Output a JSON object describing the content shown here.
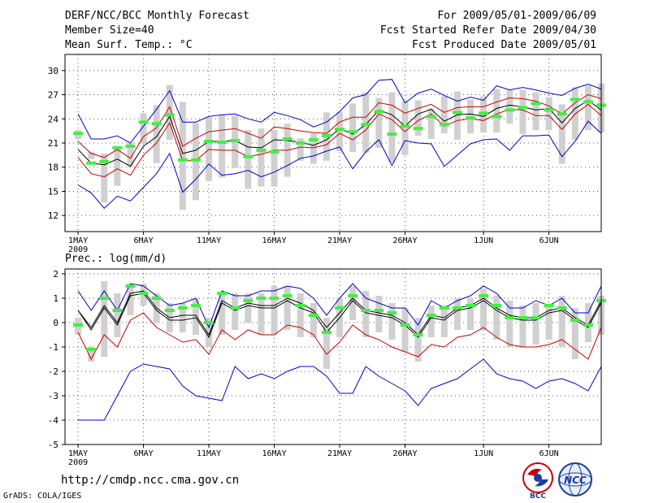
{
  "header": {
    "title": "DERF/NCC/BCC Monthly Forecast",
    "member_size": "Member Size=40",
    "variable": "Mean Surf. Temp.: °C",
    "period": "For 2009/05/01-2009/06/09",
    "started": "Fcst Started Refer Date 2009/04/30",
    "produced": "Fcst Produced Date 2009/05/01"
  },
  "panel2_label": "Prec.: log(mm/d)",
  "footer": {
    "url": "http://cmdp.ncc.cma.gov.cn",
    "grads": "GrADS: COLA/IGES",
    "logo_bcc": "BCC",
    "logo_ncc": "NCC"
  },
  "colors": {
    "envelope": "#0000cc",
    "spread": "#cc0000",
    "mean": "#000000",
    "box": "#d0d0d0",
    "obs": "#44ee44"
  },
  "chart_data": [
    {
      "type": "line",
      "title": "Mean Surf. Temp.: °C",
      "x_label": "day",
      "x_ticks": [
        "1MAY\n2009",
        "6MAY",
        "11MAY",
        "16MAY",
        "21MAY",
        "26MAY",
        "1JUN",
        "6JUN"
      ],
      "x_tick_days": [
        1,
        6,
        11,
        16,
        21,
        26,
        32,
        37
      ],
      "x_range": [
        0,
        41
      ],
      "ylim": [
        10,
        32
      ],
      "y_ticks": [
        12,
        15,
        18,
        21,
        24,
        27,
        30
      ],
      "series": [
        {
          "name": "max",
          "color": "#0000cc",
          "values": [
            24.6,
            21.5,
            21.5,
            21.9,
            21,
            23.1,
            25.2,
            27.5,
            23.6,
            23.6,
            24.3,
            24.5,
            24.6,
            24,
            23.6,
            24.8,
            24.4,
            23.9,
            23,
            23.6,
            24.9,
            26.6,
            27,
            28.8,
            28.9,
            26,
            27.2,
            27.7,
            26.9,
            26.2,
            26.7,
            26.3,
            28.1,
            27.6,
            27.9,
            27.6,
            27.2,
            26.9,
            27.8,
            28.3,
            27.7
          ]
        },
        {
          "name": "upper",
          "color": "#cc0000",
          "values": [
            21.2,
            19.7,
            19.2,
            20.2,
            19.1,
            21.8,
            22.9,
            25.5,
            20.6,
            21.6,
            22.4,
            22.6,
            22.8,
            22.2,
            21.6,
            23,
            22.8,
            22.5,
            22.3,
            22.2,
            23.6,
            24.2,
            24.2,
            26,
            25.7,
            24.7,
            25.3,
            25.8,
            24.8,
            25.4,
            25.5,
            25.5,
            26.1,
            26.6,
            26.5,
            26.2,
            25.6,
            24.6,
            26,
            27,
            26.5
          ]
        },
        {
          "name": "mean",
          "color": "#000000",
          "values": [
            20.2,
            18.5,
            18.3,
            19,
            18.1,
            20.6,
            21.8,
            24.3,
            19.7,
            20.1,
            21.2,
            21.2,
            21.3,
            20.5,
            20.4,
            21.4,
            21.3,
            21.1,
            20.7,
            21.4,
            22.8,
            22.1,
            23.3,
            25.1,
            24.5,
            23.1,
            24.6,
            25.2,
            23.7,
            24.5,
            24.6,
            24.3,
            25.3,
            25.7,
            25.5,
            25.1,
            25.3,
            23.5,
            25.3,
            26.3,
            25.1
          ]
        },
        {
          "name": "lower",
          "color": "#cc0000",
          "values": [
            19.2,
            17.2,
            16.8,
            17.8,
            17,
            19.5,
            21,
            23.5,
            18.8,
            18.8,
            20.2,
            20.1,
            20.1,
            19.3,
            19.6,
            20.1,
            20.1,
            20.5,
            20.4,
            20.8,
            22.2,
            21.4,
            22.6,
            24.6,
            23.9,
            22.4,
            23.8,
            24.6,
            23.1,
            23.8,
            24,
            23.8,
            24.6,
            25.2,
            25.1,
            24.4,
            24.4,
            22.7,
            24.6,
            25.8,
            24.4
          ]
        },
        {
          "name": "min",
          "color": "#0000cc",
          "values": [
            15.8,
            14.8,
            12.9,
            14.4,
            13.8,
            15.5,
            17.2,
            19.7,
            14.9,
            16.5,
            18.4,
            17,
            17.2,
            17.6,
            16.8,
            17.4,
            18.2,
            19.1,
            19.4,
            20,
            20.5,
            17.8,
            19.9,
            21.4,
            18.2,
            21.3,
            21,
            20.9,
            18.1,
            19.5,
            20.9,
            21.4,
            21.5,
            20.1,
            21.9,
            21.9,
            22,
            19.3,
            21.2,
            23.7,
            22.2
          ]
        }
      ],
      "boxes": [
        {
          "low": 21.5,
          "high": 22.6
        },
        {
          "low": 19,
          "high": 19.9
        },
        {
          "low": 13.6,
          "high": 19.7
        },
        {
          "low": 15.7,
          "high": 20.5
        },
        {
          "low": 18.1,
          "high": 21
        },
        {
          "low": 20.9,
          "high": 24.7
        },
        {
          "low": 18.5,
          "high": 25.7
        },
        {
          "low": 21.4,
          "high": 28.2
        },
        {
          "low": 12.7,
          "high": 26.1
        },
        {
          "low": 13.9,
          "high": 23.5
        },
        {
          "low": 16.3,
          "high": 24.2
        },
        {
          "low": 16.7,
          "high": 24.5
        },
        {
          "low": 17.9,
          "high": 24.4
        },
        {
          "low": 15.3,
          "high": 22.6
        },
        {
          "low": 15.6,
          "high": 22.8
        },
        {
          "low": 15.6,
          "high": 22.6
        },
        {
          "low": 16.8,
          "high": 23.4
        },
        {
          "low": 18.8,
          "high": 21.6
        },
        {
          "low": 18.4,
          "high": 22.2
        },
        {
          "low": 18.8,
          "high": 24.8
        },
        {
          "low": 20,
          "high": 24.9
        },
        {
          "low": 19.9,
          "high": 25.9
        },
        {
          "low": 19.8,
          "high": 27.3
        },
        {
          "low": 20.4,
          "high": 26.6
        },
        {
          "low": 18.6,
          "high": 27.3
        },
        {
          "low": 19.5,
          "high": 26.2
        },
        {
          "low": 21.9,
          "high": 26.3
        },
        {
          "low": 21.5,
          "high": 25.3
        },
        {
          "low": 22.2,
          "high": 26.8
        },
        {
          "low": 21.4,
          "high": 27.4
        },
        {
          "low": 22.2,
          "high": 26.4
        },
        {
          "low": 22.3,
          "high": 26.8
        },
        {
          "low": 22.3,
          "high": 27.7
        },
        {
          "low": 23.4,
          "high": 27.6
        },
        {
          "low": 22.1,
          "high": 27.6
        },
        {
          "low": 22.6,
          "high": 27.3
        },
        {
          "low": 22.6,
          "high": 26.7
        },
        {
          "low": 18.4,
          "high": 25.8
        },
        {
          "low": 21.4,
          "high": 27.9
        },
        {
          "low": 22.6,
          "high": 28.1
        },
        {
          "low": 22.3,
          "high": 28.4
        }
      ],
      "observed": [
        22.2,
        18.5,
        18.7,
        20.4,
        20.6,
        23.6,
        23.4,
        24.5,
        18.9,
        18.9,
        21.2,
        21.1,
        21.3,
        19.3,
        20.1,
        19.9,
        21.5,
        21,
        21.4,
        21.9,
        22.7,
        22.4,
        23.3,
        24.9,
        22.1,
        23.1,
        22.8,
        24.3,
        23.3,
        24.8,
        24.1,
        24.7,
        24.3,
        25.1,
        25.4,
        25.9,
        25.1,
        24.6,
        26.4,
        26.1,
        25.7
      ]
    },
    {
      "type": "line",
      "title": "Prec.: log(mm/d)",
      "x_label": "day",
      "x_ticks": [
        "1MAY\n2009",
        "6MAY",
        "11MAY",
        "16MAY",
        "21MAY",
        "26MAY",
        "1JUN",
        "6JUN"
      ],
      "x_tick_days": [
        1,
        6,
        11,
        16,
        21,
        26,
        32,
        37
      ],
      "x_range": [
        0,
        41
      ],
      "ylim": [
        -5,
        2.2
      ],
      "y_ticks": [
        -5,
        -4,
        -3,
        -2,
        -1,
        0,
        1,
        2
      ],
      "series": [
        {
          "name": "max",
          "color": "#0000cc",
          "values": [
            1.3,
            0.5,
            1.3,
            0.5,
            1.6,
            1.5,
            1.1,
            0.7,
            0.8,
            1,
            -0.2,
            1.3,
            1.1,
            1.1,
            1.3,
            1.3,
            1.5,
            1.4,
            1,
            0.3,
            1,
            1.6,
            1,
            0.8,
            0.6,
            0.6,
            -0.1,
            0.9,
            0.6,
            0.9,
            1.1,
            1.5,
            1.2,
            0.6,
            0.6,
            0.9,
            0.7,
            1,
            0.4,
            0.4,
            1.5
          ]
        },
        {
          "name": "upper",
          "color": "#000000",
          "values": [
            0.5,
            -0.2,
            0.7,
            0,
            1.2,
            1.3,
            0.6,
            0.2,
            0.3,
            0.3,
            -0.5,
            0.9,
            0.6,
            0.8,
            0.7,
            0.7,
            1,
            0.8,
            0.5,
            -0.2,
            0.4,
            1,
            0.5,
            0.4,
            0.3,
            0,
            -0.5,
            0.3,
            0.2,
            0.6,
            0.7,
            1,
            0.6,
            0.3,
            0.2,
            0.2,
            0.5,
            0.6,
            0.2,
            -0.1,
            0.9
          ]
        },
        {
          "name": "mean",
          "color": "#000000",
          "values": [
            0.5,
            -0.3,
            0.6,
            -0.1,
            1.1,
            1.2,
            0.5,
            0.1,
            0.1,
            0.2,
            -0.6,
            0.8,
            0.5,
            0.7,
            0.6,
            0.6,
            0.9,
            0.6,
            0.4,
            -0.4,
            0.2,
            0.9,
            0.4,
            0.3,
            0.2,
            -0.1,
            -0.6,
            0.2,
            0.1,
            0.5,
            0.6,
            0.9,
            0.5,
            0.2,
            0.1,
            0.1,
            0.4,
            0.5,
            0.1,
            -0.2,
            0.8
          ]
        },
        {
          "name": "lower",
          "color": "#cc0000",
          "values": [
            -0.4,
            -1.5,
            -0.5,
            -1,
            0.1,
            0.4,
            -0.2,
            -0.5,
            -0.8,
            -0.7,
            -1.3,
            -0.3,
            -0.7,
            -0.3,
            -0.5,
            -0.5,
            -0.1,
            -0.2,
            -0.5,
            -1.3,
            -0.8,
            -0.1,
            -0.5,
            -0.7,
            -1,
            -1.2,
            -1.4,
            -0.9,
            -1,
            -0.6,
            -0.5,
            -0.2,
            -0.6,
            -0.9,
            -1,
            -1,
            -0.9,
            -0.7,
            -1.1,
            -1.5,
            -0.2
          ]
        },
        {
          "name": "min",
          "color": "#0000cc",
          "values": [
            -4,
            -4,
            -4,
            -3,
            -2,
            -1.7,
            -1.8,
            -1.9,
            -2.6,
            -3,
            -3.1,
            -3.2,
            -1.8,
            -2.3,
            -2.1,
            -2.3,
            -2,
            -1.8,
            -1.8,
            -2.2,
            -2.9,
            -2.9,
            -1.8,
            -2.2,
            -2.5,
            -2.8,
            -3.4,
            -2.7,
            -2.5,
            -2.3,
            -1.9,
            -1.5,
            -2.1,
            -2.3,
            -2.4,
            -2.7,
            -2.4,
            -2.3,
            -2.5,
            -2.8,
            -1.8
          ]
        }
      ],
      "boxes": [
        {
          "low": -0.5,
          "high": 0.2
        },
        {
          "low": -1.6,
          "high": -1
        },
        {
          "low": -1.4,
          "high": 1.7
        },
        {
          "low": -0.6,
          "high": 1.2
        },
        {
          "low": 0.3,
          "high": 1.6
        },
        {
          "low": 0.7,
          "high": 1.6
        },
        {
          "low": 0,
          "high": 1.2
        },
        {
          "low": -0.4,
          "high": 0.8
        },
        {
          "low": -0.4,
          "high": 0.8
        },
        {
          "low": -0.5,
          "high": 1
        },
        {
          "low": -1,
          "high": 0.2
        },
        {
          "low": -0.5,
          "high": 1.2
        },
        {
          "low": -0.3,
          "high": 1.2
        },
        {
          "low": 0,
          "high": 1.2
        },
        {
          "low": -0.5,
          "high": 1.2
        },
        {
          "low": -0.5,
          "high": 1.5
        },
        {
          "low": -0.3,
          "high": 1.5
        },
        {
          "low": -0.6,
          "high": 1.2
        },
        {
          "low": -0.6,
          "high": 0.8
        },
        {
          "low": -1.9,
          "high": 0.2
        },
        {
          "low": -0.6,
          "high": 1
        },
        {
          "low": 0.1,
          "high": 1.5
        },
        {
          "low": -0.6,
          "high": 1.3
        },
        {
          "low": -0.4,
          "high": 1.1
        },
        {
          "low": -0.7,
          "high": 0.8
        },
        {
          "low": -1.2,
          "high": 0.6
        },
        {
          "low": -1.6,
          "high": 0.2
        },
        {
          "low": -0.6,
          "high": 0.7
        },
        {
          "low": -0.6,
          "high": 0.7
        },
        {
          "low": -0.3,
          "high": 1
        },
        {
          "low": -0.3,
          "high": 1
        },
        {
          "low": -0.3,
          "high": 1.4
        },
        {
          "low": -0.7,
          "high": 1.1
        },
        {
          "low": -1,
          "high": 0.9
        },
        {
          "low": -1,
          "high": 0.7
        },
        {
          "low": -0.9,
          "high": 0.8
        },
        {
          "low": -0.7,
          "high": 0.7
        },
        {
          "low": -1,
          "high": 1.1
        },
        {
          "low": -1.5,
          "high": 0.6
        },
        {
          "low": -0.8,
          "high": 0.8
        },
        {
          "low": -0.5,
          "high": 1.1
        }
      ],
      "observed": [
        -0.1,
        -1.1,
        1,
        0.5,
        1.5,
        1.2,
        1,
        0.5,
        0.6,
        0.7,
        0,
        1.2,
        0.6,
        0.9,
        1,
        1,
        1.1,
        0.7,
        0.3,
        -0.4,
        0.6,
        1.1,
        0.5,
        0.5,
        0.4,
        -0.1,
        -0.5,
        0.3,
        0.6,
        0.6,
        0.7,
        1.1,
        0.7,
        0.2,
        0.2,
        0.2,
        0.7,
        0.6,
        0.1,
        -0.1,
        0.9
      ]
    }
  ]
}
